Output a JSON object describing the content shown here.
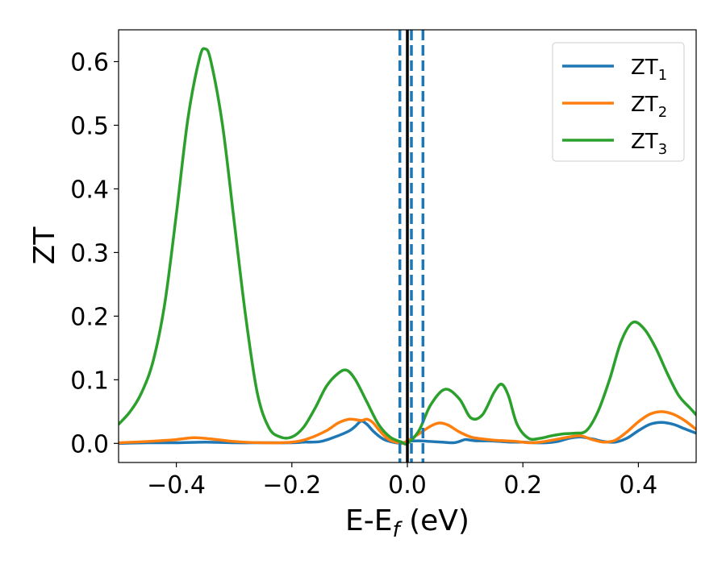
{
  "chart_data": {
    "type": "line",
    "title": "",
    "xlabel": {
      "main": "E-E",
      "sub": "f",
      "suffix": " (eV)"
    },
    "ylabel": "ZT",
    "xlim": [
      -0.5,
      0.5
    ],
    "ylim": [
      -0.03,
      0.65
    ],
    "x_ticks": [
      -0.4,
      -0.2,
      0.0,
      0.2,
      0.4
    ],
    "x_tick_labels": [
      "−0.4",
      "−0.2",
      "0.0",
      "0.2",
      "0.4"
    ],
    "y_ticks": [
      0.0,
      0.1,
      0.2,
      0.3,
      0.4,
      0.5,
      0.6
    ],
    "y_tick_labels": [
      "0.0",
      "0.1",
      "0.2",
      "0.3",
      "0.4",
      "0.5",
      "0.6"
    ],
    "grid": false,
    "legend_position": "top-right",
    "vertical_lines": [
      {
        "x": 0.0,
        "style": "solid",
        "color": "#000000"
      },
      {
        "x": -0.013,
        "style": "dashed",
        "color": "#1f77b4"
      },
      {
        "x": 0.007,
        "style": "dashed",
        "color": "#1f77b4"
      },
      {
        "x": 0.027,
        "style": "dashed",
        "color": "#1f77b4"
      }
    ],
    "series": [
      {
        "name": "ZT",
        "name_sub": "1",
        "color": "#1f77b4",
        "x": [
          -0.5,
          -0.45,
          -0.4,
          -0.35,
          -0.3,
          -0.25,
          -0.2,
          -0.18,
          -0.15,
          -0.12,
          -0.1,
          -0.09,
          -0.08,
          -0.07,
          -0.06,
          -0.05,
          -0.04,
          -0.03,
          -0.02,
          -0.01,
          0.0,
          0.02,
          0.04,
          0.06,
          0.08,
          0.09,
          0.1,
          0.11,
          0.12,
          0.14,
          0.16,
          0.18,
          0.2,
          0.22,
          0.24,
          0.26,
          0.28,
          0.3,
          0.32,
          0.34,
          0.36,
          0.38,
          0.4,
          0.42,
          0.44,
          0.46,
          0.48,
          0.5
        ],
        "y": [
          0.0,
          0.001,
          0.001,
          0.002,
          0.001,
          0.001,
          0.001,
          0.002,
          0.003,
          0.012,
          0.02,
          0.027,
          0.035,
          0.03,
          0.02,
          0.012,
          0.006,
          0.003,
          0.001,
          0.0,
          0.003,
          0.004,
          0.003,
          0.002,
          0.001,
          0.003,
          0.006,
          0.005,
          0.004,
          0.004,
          0.003,
          0.002,
          0.002,
          0.001,
          0.001,
          0.003,
          0.008,
          0.01,
          0.007,
          0.003,
          0.002,
          0.008,
          0.02,
          0.03,
          0.033,
          0.03,
          0.023,
          0.016
        ]
      },
      {
        "name": "ZT",
        "name_sub": "2",
        "color": "#ff7f0e",
        "x": [
          -0.5,
          -0.45,
          -0.4,
          -0.37,
          -0.34,
          -0.3,
          -0.25,
          -0.2,
          -0.17,
          -0.14,
          -0.12,
          -0.1,
          -0.08,
          -0.07,
          -0.06,
          -0.05,
          -0.04,
          -0.03,
          -0.02,
          -0.01,
          0.0,
          0.02,
          0.04,
          0.055,
          0.07,
          0.09,
          0.11,
          0.13,
          0.15,
          0.17,
          0.19,
          0.21,
          0.23,
          0.25,
          0.28,
          0.3,
          0.32,
          0.34,
          0.36,
          0.38,
          0.4,
          0.42,
          0.44,
          0.46,
          0.48,
          0.5
        ],
        "y": [
          0.001,
          0.003,
          0.006,
          0.009,
          0.007,
          0.003,
          0.001,
          0.002,
          0.008,
          0.02,
          0.032,
          0.038,
          0.036,
          0.038,
          0.033,
          0.022,
          0.012,
          0.005,
          0.002,
          0.0,
          0.004,
          0.015,
          0.027,
          0.032,
          0.029,
          0.018,
          0.01,
          0.007,
          0.005,
          0.004,
          0.003,
          0.001,
          0.002,
          0.005,
          0.01,
          0.012,
          0.006,
          0.002,
          0.005,
          0.018,
          0.034,
          0.046,
          0.05,
          0.046,
          0.036,
          0.022
        ]
      },
      {
        "name": "ZT",
        "name_sub": "3",
        "color": "#2ca02c",
        "x": [
          -0.5,
          -0.48,
          -0.46,
          -0.44,
          -0.42,
          -0.4,
          -0.38,
          -0.36,
          -0.35,
          -0.34,
          -0.32,
          -0.3,
          -0.28,
          -0.26,
          -0.24,
          -0.22,
          -0.2,
          -0.18,
          -0.16,
          -0.14,
          -0.12,
          -0.105,
          -0.09,
          -0.07,
          -0.05,
          -0.03,
          -0.01,
          0.0,
          0.02,
          0.04,
          0.065,
          0.09,
          0.11,
          0.13,
          0.15,
          0.163,
          0.175,
          0.19,
          0.21,
          0.23,
          0.25,
          0.27,
          0.29,
          0.31,
          0.33,
          0.35,
          0.37,
          0.39,
          0.41,
          0.43,
          0.45,
          0.47,
          0.49,
          0.5
        ],
        "y": [
          0.03,
          0.05,
          0.08,
          0.13,
          0.22,
          0.36,
          0.51,
          0.605,
          0.62,
          0.6,
          0.5,
          0.35,
          0.2,
          0.08,
          0.025,
          0.01,
          0.01,
          0.025,
          0.055,
          0.09,
          0.11,
          0.115,
          0.1,
          0.065,
          0.03,
          0.01,
          0.002,
          0.0,
          0.02,
          0.06,
          0.085,
          0.07,
          0.04,
          0.045,
          0.08,
          0.093,
          0.075,
          0.03,
          0.008,
          0.008,
          0.012,
          0.015,
          0.016,
          0.02,
          0.05,
          0.1,
          0.16,
          0.19,
          0.18,
          0.15,
          0.11,
          0.075,
          0.055,
          0.045
        ]
      }
    ]
  }
}
